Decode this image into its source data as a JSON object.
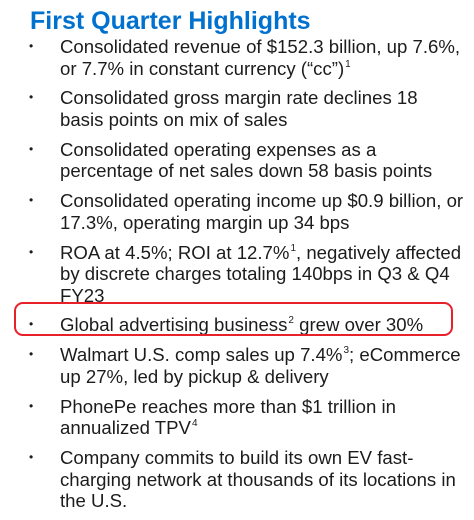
{
  "title": "First Quarter Highlights",
  "colors": {
    "title": "#0071ce",
    "text": "#1c1c1c",
    "highlight_border": "#e8202a"
  },
  "bullet_glyph": "•",
  "highlighted_item_index": 5,
  "items": [
    {
      "text": "Consolidated revenue of $152.3 billion, up 7.6%, or 7.7% in constant currency (“cc”)",
      "sup": "1",
      "after": ""
    },
    {
      "text": "Consolidated gross margin rate declines 18 basis points on mix of sales",
      "sup": "",
      "after": ""
    },
    {
      "text": "Consolidated operating expenses as a percentage of net sales down 58 basis points",
      "sup": "",
      "after": ""
    },
    {
      "text": "Consolidated operating income up $0.9 billion, or 17.3%, operating margin up 34 bps",
      "sup": "",
      "after": ""
    },
    {
      "text": "ROA at 4.5%; ROI at 12.7%",
      "sup": "1",
      "after": ", negatively affected by discrete charges totaling 140bps in Q3 & Q4 FY23"
    },
    {
      "text": "Global advertising business",
      "sup": "2",
      "after": " grew over 30%"
    },
    {
      "text": "Walmart U.S. comp sales up 7.4%",
      "sup": "3",
      "after": "; eCommerce up 27%, led by pickup & delivery"
    },
    {
      "text": "PhonePe reaches more than $1 trillion in annualized TPV",
      "sup": "4",
      "after": ""
    },
    {
      "text": "Company commits to build its own EV fast-charging network at thousands of its locations in the U.S.",
      "sup": "",
      "after": ""
    }
  ]
}
